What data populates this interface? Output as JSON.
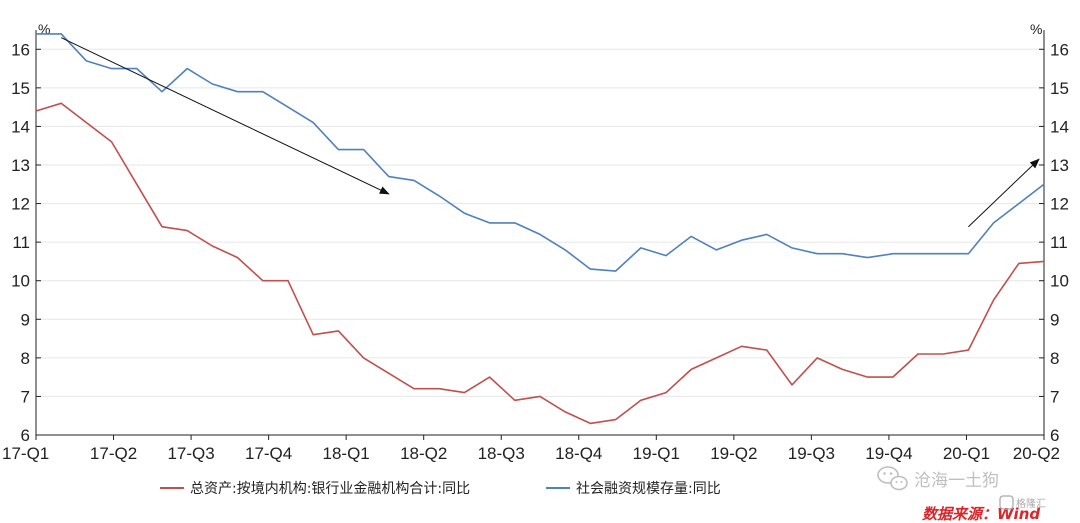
{
  "chart_data": {
    "type": "line",
    "left_unit": "%",
    "right_unit": "%",
    "ylim": [
      6,
      16.5
    ],
    "yticks": [
      6,
      7,
      8,
      9,
      10,
      11,
      12,
      13,
      14,
      15,
      16
    ],
    "x_labels": [
      "17-Q1",
      "17-Q2",
      "17-Q3",
      "17-Q4",
      "18-Q1",
      "18-Q2",
      "18-Q3",
      "18-Q4",
      "19-Q1",
      "19-Q2",
      "19-Q3",
      "19-Q4",
      "20-Q1",
      "20-Q2"
    ],
    "series": [
      {
        "name": "总资产:按境内机构:银行业金融机构合计:同比",
        "color": "#c0504d",
        "values": [
          14.4,
          14.6,
          14.1,
          13.6,
          12.5,
          11.4,
          11.3,
          10.9,
          10.6,
          10.0,
          10.0,
          8.6,
          8.7,
          8.0,
          7.6,
          7.2,
          7.2,
          7.1,
          7.5,
          6.9,
          7.0,
          6.6,
          6.3,
          6.4,
          6.9,
          7.1,
          7.7,
          8.0,
          8.3,
          8.2,
          7.3,
          8.0,
          7.7,
          7.5,
          7.5,
          8.1,
          8.1,
          8.2,
          9.5,
          10.45,
          10.5
        ]
      },
      {
        "name": "社会融资规模存量:同比",
        "color": "#4f81bd",
        "values": [
          16.4,
          16.4,
          15.7,
          15.5,
          15.5,
          14.9,
          15.5,
          15.1,
          14.9,
          14.9,
          14.5,
          14.1,
          13.4,
          13.4,
          12.7,
          12.6,
          12.2,
          11.75,
          11.5,
          11.5,
          11.2,
          10.8,
          10.3,
          10.25,
          10.85,
          10.65,
          11.15,
          10.8,
          11.05,
          11.2,
          10.85,
          10.7,
          10.7,
          10.6,
          10.7,
          10.7,
          10.7,
          10.7,
          11.5,
          12.0,
          12.5
        ]
      }
    ],
    "annotations": {
      "arrow_down": {
        "from_index": 1,
        "from_value": 16.3,
        "to_index": 14,
        "to_value": 12.25
      },
      "arrow_up": {
        "from_index": 37,
        "from_value": 11.4,
        "to_index": 39.8,
        "to_value": 13.15
      }
    }
  },
  "watermark": {
    "text": "沧海一土狗"
  },
  "source": {
    "text": "数据来源：Wind"
  },
  "corner_logo": {
    "text": "格隆汇"
  }
}
